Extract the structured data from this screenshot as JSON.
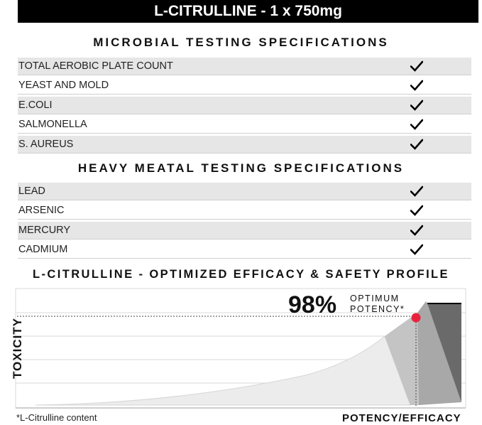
{
  "banner": "L-CITRULLINE - 1 x 750mg",
  "microbial": {
    "title": "MICROBIAL TESTING SPECIFICATIONS",
    "items": [
      "TOTAL AEROBIC PLATE COUNT",
      "YEAST AND MOLD",
      "E.COLI",
      "SALMONELLA",
      "S. AUREUS"
    ]
  },
  "heavy_metal": {
    "title": "HEAVY MEATAL TESTING SPECIFICATIONS",
    "items": [
      "LEAD",
      "ARSENIC",
      "MERCURY",
      "CADMIUM"
    ]
  },
  "chart": {
    "title": "L-CITRULLINE - OPTIMIZED EFFICACY & SAFETY PROFILE",
    "big_value": "98%",
    "note_line1": "OPTIMUM",
    "note_line2": "POTENCY*",
    "ylabel": "TOXICITY",
    "xlabel": "POTENCY/EFFICACY",
    "marker_color": "#e8243c"
  },
  "footnote": "*L-Citrulline content",
  "icons": {
    "check": "check-icon"
  }
}
